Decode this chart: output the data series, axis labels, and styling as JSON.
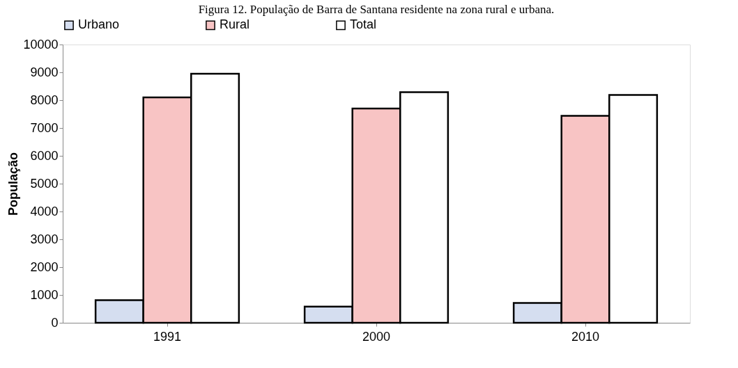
{
  "chart_data": {
    "type": "bar",
    "title": "Figura 12. População de Barra de Santana residente na zona rural e urbana.",
    "ylabel": "População",
    "categories": [
      "1991",
      "2000",
      "2010"
    ],
    "series": [
      {
        "name": "Urbano",
        "color": "#d5def0",
        "values": [
          810,
          580,
          710
        ]
      },
      {
        "name": "Rural",
        "color": "#f8c4c4",
        "values": [
          8100,
          7700,
          7440
        ]
      },
      {
        "name": "Total",
        "color": "#ffffff",
        "values": [
          8950,
          8290,
          8190
        ]
      }
    ],
    "ylim": [
      0,
      10000
    ],
    "yticks": [
      0,
      1000,
      2000,
      3000,
      4000,
      5000,
      6000,
      7000,
      8000,
      9000,
      10000
    ],
    "grid": false,
    "legend": "top"
  }
}
